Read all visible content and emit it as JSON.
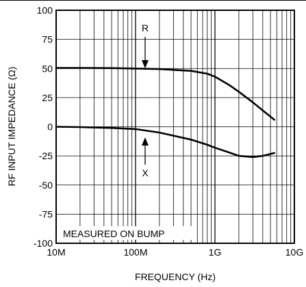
{
  "chart_data": {
    "type": "line",
    "xlabel": "FREQUENCY (Hz)",
    "ylabel": "RF INPUT IMPEDANCE (Ω)",
    "x_scale": "log",
    "xlim": [
      "10M",
      "10G"
    ],
    "ylim": [
      -100,
      100
    ],
    "grid": true,
    "x_tick_labels": [
      "10M",
      "100M",
      "1G",
      "10G"
    ],
    "y_tick_labels": [
      "100",
      "75",
      "50",
      "25",
      "0",
      "-25",
      "-50",
      "-75",
      "-100"
    ],
    "series": [
      {
        "name": "R",
        "x": [
          "10M",
          "20M",
          "50M",
          "100M",
          "200M",
          "500M",
          "800M",
          "1G",
          "1.5G",
          "2G",
          "3G",
          "4G",
          "5.6G"
        ],
        "y": [
          50.5,
          50.5,
          50.3,
          50,
          49.5,
          48,
          45.5,
          43,
          36,
          30,
          21,
          14,
          6
        ]
      },
      {
        "name": "X",
        "x": [
          "10M",
          "20M",
          "50M",
          "100M",
          "200M",
          "500M",
          "800M",
          "1G",
          "1.5G",
          "2G",
          "3G",
          "4G",
          "5.6G"
        ],
        "y": [
          0,
          -0.3,
          -1,
          -2,
          -5,
          -11,
          -15.5,
          -18,
          -22,
          -25,
          -26,
          -25,
          -22.5
        ]
      }
    ],
    "annotations": {
      "r_label": "R",
      "x_label": "X",
      "note": "MEASURED ON BUMP"
    }
  }
}
